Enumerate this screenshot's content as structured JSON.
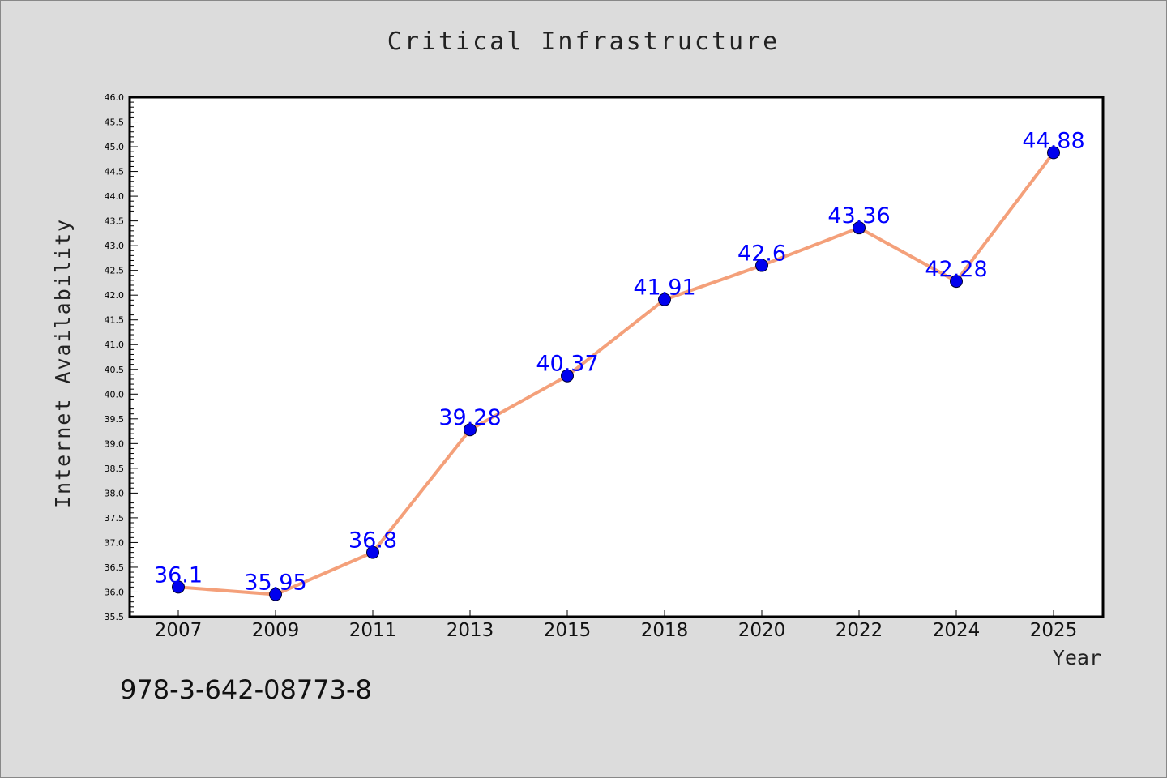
{
  "chart_data": {
    "type": "line",
    "title": "Critical Infrastructure",
    "xlabel": "Year",
    "ylabel": "Internet Availability",
    "categories": [
      "2007",
      "2009",
      "2011",
      "2013",
      "2015",
      "2018",
      "2020",
      "2022",
      "2024",
      "2025"
    ],
    "series": [
      {
        "values": [
          36.1,
          35.95,
          36.8,
          39.28,
          40.37,
          41.91,
          42.6,
          43.36,
          42.28,
          44.88
        ]
      }
    ],
    "data_labels": [
      "36.1",
      "35.95",
      "36.8",
      "39.28",
      "40.37",
      "41.91",
      "42.6",
      "43.36",
      "42.28",
      "44.88"
    ],
    "ylim": [
      35.5,
      46.0
    ],
    "yticks": [
      "35.5",
      "36.0",
      "36.5",
      "37.0",
      "37.5",
      "38.0",
      "38.5",
      "39.0",
      "39.5",
      "40.0",
      "40.5",
      "41.0",
      "41.5",
      "42.0",
      "42.5",
      "43.0",
      "43.5",
      "44.0",
      "44.5",
      "45.0",
      "45.5",
      "46.0"
    ],
    "grid": false,
    "colors": {
      "line": "#f4a07a",
      "marker": "#0000ee",
      "label": "#0000ff"
    }
  },
  "footer": {
    "code": "978-3-642-08773-8"
  }
}
